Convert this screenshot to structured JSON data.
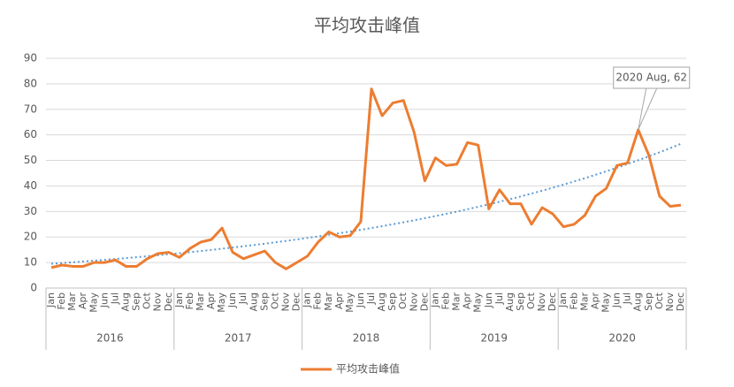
{
  "chart_data": {
    "type": "line",
    "title": "平均攻击峰值",
    "categories": [
      "Jan",
      "Feb",
      "Mar",
      "Apr",
      "May",
      "Jun",
      "Jul",
      "Aug",
      "Sep",
      "Oct",
      "Nov",
      "Dec",
      "Jan",
      "Feb",
      "Mar",
      "Apr",
      "May",
      "Jun",
      "Jul",
      "Aug",
      "Sep",
      "Oct",
      "Nov",
      "Dec",
      "Jan",
      "Feb",
      "Mar",
      "Apr",
      "May",
      "Jun",
      "Jul",
      "Aug",
      "Sep",
      "Oct",
      "Nov",
      "Dec",
      "Jan",
      "Feb",
      "Mar",
      "Apr",
      "May",
      "Jun",
      "Jul",
      "Aug",
      "Sep",
      "Oct",
      "Nov",
      "Dec",
      "Jan",
      "Feb",
      "Mar",
      "Apr",
      "May",
      "Jun",
      "Jul",
      "Aug",
      "Sep",
      "Oct",
      "Nov",
      "Dec"
    ],
    "category_groups": [
      "2016",
      "2017",
      "2018",
      "2019",
      "2020"
    ],
    "series": [
      {
        "name": "平均攻击峰值",
        "color": "#ed7d31",
        "values": [
          8,
          9,
          8.5,
          8.5,
          10,
          10,
          11,
          8.5,
          8.5,
          11.5,
          13.5,
          14,
          12,
          15.5,
          18,
          19,
          23.5,
          14,
          11.5,
          13,
          14.5,
          10,
          7.5,
          10,
          12.5,
          18,
          22,
          20,
          20.5,
          26,
          78,
          67.5,
          72.5,
          73.5,
          61,
          42,
          51,
          48,
          48.5,
          57,
          56,
          31,
          38.5,
          33,
          33,
          25,
          31.5,
          29,
          24,
          25,
          28.5,
          36,
          39,
          48,
          49,
          62,
          52,
          36,
          32,
          32.5
        ]
      }
    ],
    "trendline": {
      "kind": "exponential",
      "values": [
        9.5,
        56.5
      ],
      "color": "#5b9bd5"
    },
    "annotation": {
      "text": "2020 Aug, 62",
      "group": "2020",
      "category": "Aug",
      "value": 62
    },
    "ylim": [
      0,
      90
    ],
    "yticks": [
      0,
      10,
      20,
      30,
      40,
      50,
      60,
      70,
      80,
      90
    ],
    "grid": true,
    "legend": "bottom"
  }
}
